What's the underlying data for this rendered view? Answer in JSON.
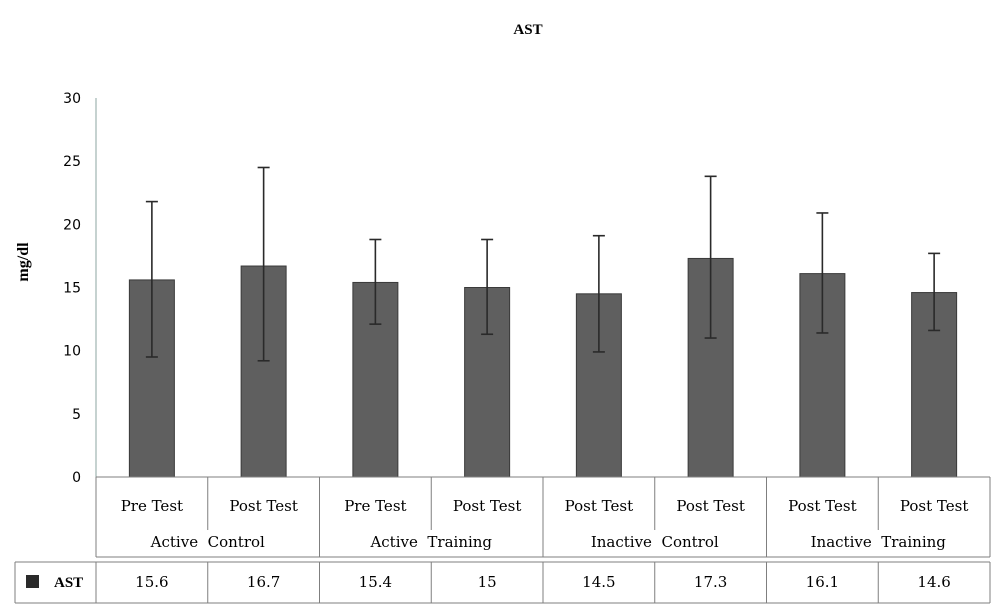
{
  "chart_data": {
    "type": "bar",
    "title": "AST",
    "ylabel": "mg/dl",
    "xlabel": "",
    "ylim": [
      0,
      30
    ],
    "yticks": [
      "0",
      "5",
      "10",
      "15",
      "20",
      "25",
      "30"
    ],
    "groups": [
      {
        "label": "Active  Control",
        "categories": [
          "Pre Test",
          "Post Test"
        ]
      },
      {
        "label": "Active  Training",
        "categories": [
          "Pre Test",
          "Post Test"
        ]
      },
      {
        "label": "Inactive  Control",
        "categories": [
          "Post Test",
          "Post Test"
        ]
      },
      {
        "label": "Inactive  Training",
        "categories": [
          "Post Test",
          "Post Test"
        ]
      }
    ],
    "categories": [
      "Pre Test",
      "Post Test",
      "Pre Test",
      "Post Test",
      "Post Test",
      "Post Test",
      "Post Test",
      "Post Test"
    ],
    "series": [
      {
        "name": "AST",
        "values": [
          15.6,
          16.7,
          15.4,
          15,
          14.5,
          17.3,
          16.1,
          14.6
        ],
        "value_labels": [
          "15.6",
          "16.7",
          "15.4",
          "15",
          "14.5",
          "17.3",
          "16.1",
          "14.6"
        ],
        "error_low": [
          9.5,
          9.2,
          12.1,
          11.3,
          9.9,
          11.0,
          11.4,
          11.6
        ],
        "error_high": [
          21.8,
          24.5,
          18.8,
          18.8,
          19.1,
          23.8,
          20.9,
          17.7
        ]
      }
    ],
    "grid": false,
    "legend": "data-table",
    "colors": {
      "bar": "#5f5f5f",
      "bar_edge": "#3a3a3a",
      "error": "#2a2a2a",
      "axis": "#9fb3b0",
      "table_line": "#7f7f7f"
    }
  }
}
